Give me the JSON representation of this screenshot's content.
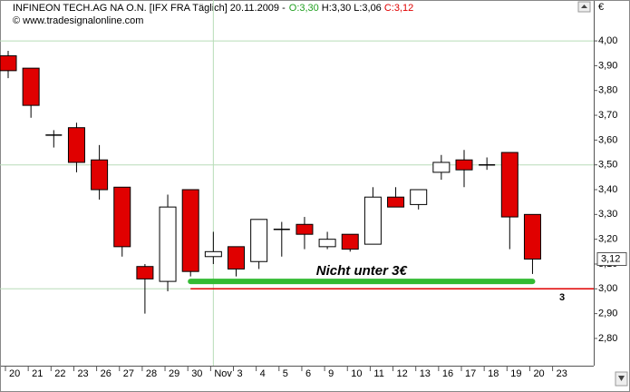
{
  "chart_data": {
    "type": "candlestick",
    "title": "INFINEON TECH.AG NA O.N. [IFX FRA  Täglich] 20.11.2009 -",
    "header_values": [
      {
        "label": "O:3,30",
        "color": "#22a022"
      },
      {
        "label": "H:3,30",
        "color": "#000000"
      },
      {
        "label": "L:3,06",
        "color": "#000000"
      },
      {
        "label": "C:3,12",
        "color": "#e00000"
      }
    ],
    "subtitle": "© www.tradesignalonline.com",
    "currency": "€",
    "categories": [
      "20",
      "21",
      "22",
      "23",
      "26",
      "27",
      "28",
      "29",
      "30",
      "Nov",
      "3",
      "4",
      "5",
      "6",
      "9",
      "10",
      "11",
      "12",
      "13",
      "16",
      "17",
      "18",
      "19",
      "20",
      "23"
    ],
    "open": [
      3.94,
      3.89,
      3.62,
      3.65,
      3.52,
      3.41,
      3.09,
      3.03,
      3.4,
      3.13,
      3.17,
      3.11,
      3.24,
      3.26,
      3.17,
      3.22,
      3.18,
      3.37,
      3.34,
      3.47,
      3.52,
      3.5,
      3.55,
      3.3,
      null
    ],
    "high": [
      3.96,
      3.89,
      3.64,
      3.67,
      3.58,
      3.41,
      3.1,
      3.38,
      3.4,
      3.23,
      3.17,
      3.28,
      3.27,
      3.29,
      3.23,
      3.22,
      3.41,
      3.41,
      3.4,
      3.54,
      3.56,
      3.53,
      3.55,
      3.3,
      null
    ],
    "low": [
      3.85,
      3.69,
      3.57,
      3.47,
      3.36,
      3.13,
      2.9,
      2.99,
      3.05,
      3.1,
      3.05,
      3.08,
      3.13,
      3.16,
      3.16,
      3.15,
      3.18,
      3.33,
      3.32,
      3.44,
      3.41,
      3.48,
      3.16,
      3.06,
      null
    ],
    "close": [
      3.88,
      3.74,
      3.62,
      3.51,
      3.4,
      3.17,
      3.04,
      3.33,
      3.07,
      3.15,
      3.08,
      3.28,
      3.24,
      3.22,
      3.2,
      3.16,
      3.37,
      3.33,
      3.4,
      3.51,
      3.48,
      3.5,
      3.29,
      3.12,
      null
    ],
    "up_color": "#ffffff",
    "down_color": "#e00000",
    "ylim": [
      2.69,
      4.165
    ],
    "yticks": [
      {
        "value": 2.8,
        "label": "2,80"
      },
      {
        "value": 2.9,
        "label": "2,90"
      },
      {
        "value": 3.0,
        "label": "3,00"
      },
      {
        "value": 3.1,
        "label": "3,10"
      },
      {
        "value": 3.2,
        "label": "3,20"
      },
      {
        "value": 3.3,
        "label": "3,30"
      },
      {
        "value": 3.4,
        "label": "3,40"
      },
      {
        "value": 3.5,
        "label": "3,50"
      },
      {
        "value": 3.6,
        "label": "3,60"
      },
      {
        "value": 3.7,
        "label": "3,70"
      },
      {
        "value": 3.8,
        "label": "3,80"
      },
      {
        "value": 3.9,
        "label": "3,90"
      },
      {
        "value": 4.0,
        "label": "4,00"
      }
    ],
    "grid": true,
    "last_price": {
      "value": 3.12,
      "label": "3,12"
    },
    "level": 3,
    "level_color": "#e00000",
    "annotation": {
      "text": "Nicht unter 3€",
      "value": 3.03,
      "color": "#33bb33"
    }
  }
}
